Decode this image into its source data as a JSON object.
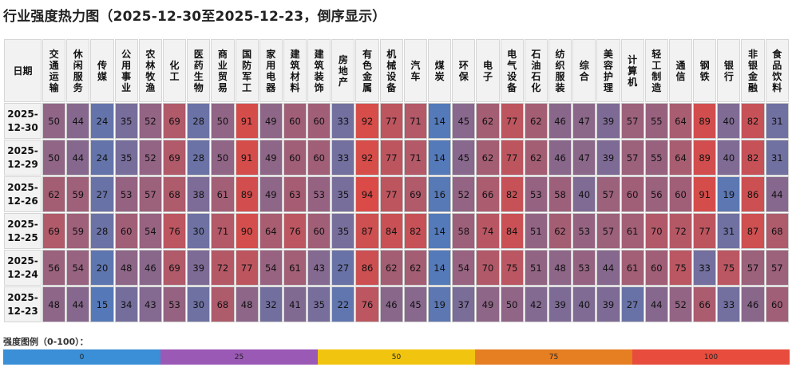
{
  "title": "行业强度热力图（2025-12-30至2025-12-23，倒序显示）",
  "legend": {
    "label": "强度图例（0-100）：",
    "ticks": [
      "0",
      "25",
      "50",
      "75",
      "100"
    ],
    "colors": [
      "#3a8fd6",
      "#9b59b6",
      "#f1c40f",
      "#e67e22",
      "#e74c3c"
    ]
  },
  "chart_data": {
    "type": "heatmap",
    "title": "行业强度热力图（2025-12-30至2025-12-23，倒序显示）",
    "row_header": "日期",
    "value_range": [
      0,
      100
    ],
    "columns": [
      "交通运输",
      "休闲服务",
      "传媒",
      "公用事业",
      "农林牧渔",
      "化工",
      "医药生物",
      "商业贸易",
      "国防军工",
      "家用电器",
      "建筑材料",
      "建筑装饰",
      "房地产",
      "有色金属",
      "机械设备",
      "汽车",
      "煤炭",
      "环保",
      "电子",
      "电气设备",
      "石油石化",
      "纺织服装",
      "综合",
      "美容护理",
      "计算机",
      "轻工制造",
      "通信",
      "钢铁",
      "银行",
      "非银金融",
      "食品饮料"
    ],
    "rows": [
      {
        "date": "2025-12-30",
        "values": [
          50,
          44,
          24,
          35,
          52,
          69,
          28,
          50,
          91,
          49,
          60,
          60,
          33,
          92,
          77,
          71,
          14,
          45,
          62,
          77,
          62,
          46,
          47,
          39,
          57,
          55,
          64,
          89,
          40,
          82,
          31
        ]
      },
      {
        "date": "2025-12-29",
        "values": [
          50,
          44,
          24,
          35,
          52,
          69,
          28,
          50,
          91,
          49,
          60,
          60,
          33,
          92,
          77,
          71,
          14,
          45,
          62,
          77,
          62,
          46,
          47,
          39,
          57,
          55,
          64,
          89,
          40,
          82,
          31
        ]
      },
      {
        "date": "2025-12-26",
        "values": [
          62,
          59,
          27,
          53,
          57,
          68,
          38,
          61,
          89,
          49,
          63,
          53,
          35,
          94,
          77,
          69,
          16,
          52,
          66,
          82,
          53,
          58,
          40,
          57,
          60,
          56,
          60,
          91,
          19,
          86,
          44
        ]
      },
      {
        "date": "2025-12-25",
        "values": [
          69,
          59,
          28,
          60,
          54,
          76,
          30,
          71,
          90,
          64,
          76,
          60,
          35,
          87,
          84,
          82,
          14,
          58,
          74,
          84,
          51,
          62,
          53,
          57,
          61,
          70,
          72,
          77,
          31,
          87,
          68
        ]
      },
      {
        "date": "2025-12-24",
        "values": [
          56,
          54,
          20,
          48,
          46,
          69,
          39,
          72,
          77,
          54,
          61,
          43,
          27,
          86,
          62,
          62,
          14,
          54,
          70,
          75,
          51,
          48,
          53,
          44,
          61,
          60,
          75,
          33,
          75,
          57,
          57
        ]
      },
      {
        "date": "2025-12-23",
        "values": [
          48,
          44,
          15,
          34,
          43,
          53,
          30,
          68,
          48,
          32,
          41,
          35,
          22,
          76,
          46,
          45,
          19,
          37,
          49,
          50,
          42,
          39,
          40,
          39,
          27,
          44,
          52,
          66,
          33,
          46,
          60
        ]
      }
    ]
  }
}
